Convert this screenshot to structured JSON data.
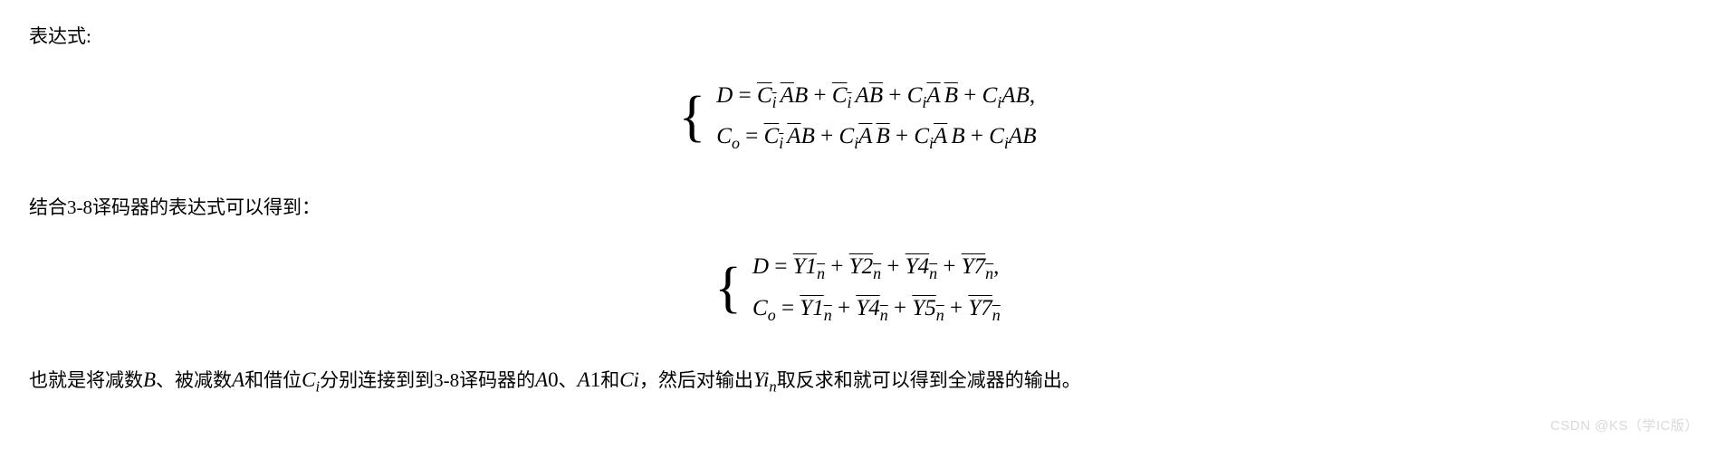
{
  "text": {
    "line1": "表达式:",
    "line2": "结合3-8译码器的表达式可以得到：",
    "line3_pre": "也就是将减数",
    "line3_b": "B",
    "line3_s1": "、被减数",
    "line3_a": "A",
    "line3_s2": "和借位",
    "line3_ci_c": "C",
    "line3_ci_i": "i",
    "line3_s3": "分别连接到到3-8译码器的",
    "line3_a0_a": "A",
    "line3_a0_0": "0",
    "line3_sep1": "、",
    "line3_a1_a": "A",
    "line3_a1_1": "1",
    "line3_s4": "和",
    "line3_ci2_c": "C",
    "line3_ci2_i": "i",
    "line3_s5": "，然后对输出",
    "line3_yi_y": "Y",
    "line3_yi_i": "i",
    "line3_yi_n": "n",
    "line3_s6": "取反求和就可以得到全减器的输出。"
  },
  "eq1": {
    "row1": {
      "lhs": "D",
      "eq": " = ",
      "t1a": "C",
      "t1a_sub": "i",
      "t1b": "A",
      "t1c": "B",
      "p": " + ",
      "t2a": "C",
      "t2a_sub": "i",
      "t2b": "A",
      "t2c": "B",
      "t3a": "C",
      "t3a_sub": "i",
      "t3b": "A",
      "t3c": "B",
      "t4a": "C",
      "t4a_sub": "i",
      "t4b": "A",
      "t4c": "B",
      "comma": ","
    },
    "row2": {
      "lhs": "C",
      "lhs_sub": "o",
      "eq": " = ",
      "t1a": "C",
      "t1a_sub": "i",
      "t1b": "A",
      "t1c": "B",
      "p": " + ",
      "t2a": "C",
      "t2a_sub": "i",
      "t2b": "A",
      "t2c": "B",
      "t3a": "C",
      "t3a_sub": "i",
      "t3b": "A",
      "t3c": "B",
      "t4a": "C",
      "t4a_sub": "i",
      "t4b": "A",
      "t4c": "B"
    }
  },
  "eq2": {
    "row1": {
      "lhs": "D",
      "eq": " = ",
      "y1": "Y1",
      "y2": "Y2",
      "y4": "Y4",
      "y7": "Y7",
      "n": "n",
      "p": " + ",
      "comma": ","
    },
    "row2": {
      "lhs": "C",
      "lhs_sub": "o",
      "eq": " = ",
      "y1": "Y1",
      "y4": "Y4",
      "y5": "Y5",
      "y7": "Y7",
      "n": "n",
      "p": " + "
    }
  },
  "watermark": "CSDN @KS（学IC版）",
  "style": {
    "body_fontsize": 21,
    "eq_fontsize": 25,
    "inline_math_fontsize": 23,
    "brace_fontsize": 62,
    "text_color": "#000000",
    "background_color": "#ffffff",
    "watermark_color": "#d9d9d9"
  }
}
